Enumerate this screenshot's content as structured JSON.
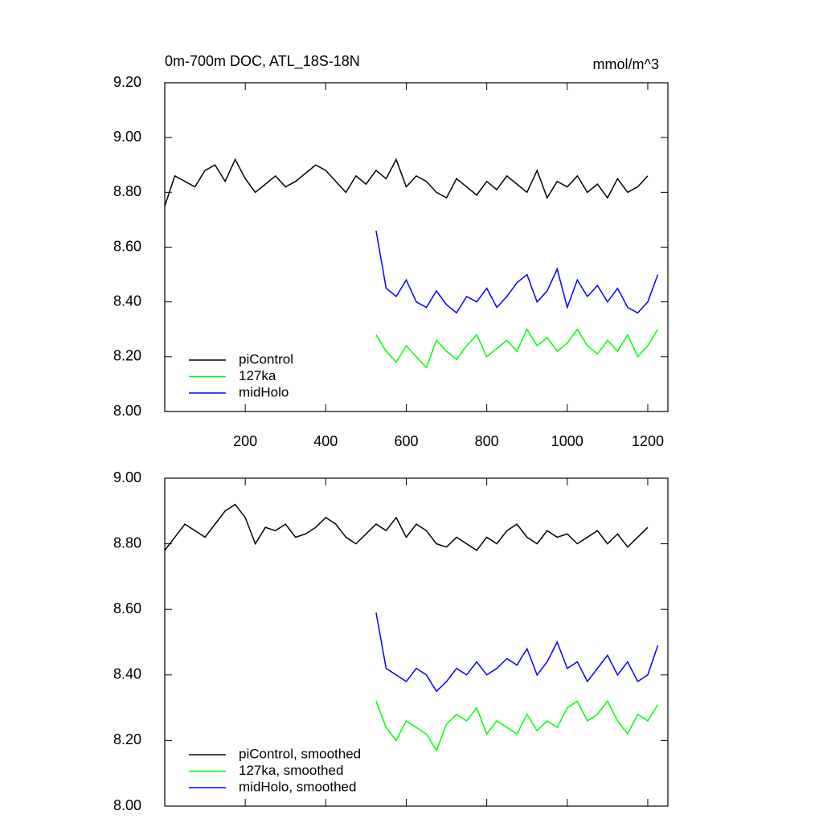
{
  "chart_data": [
    {
      "type": "line",
      "title": "0m-700m DOC, ATL_18S-18N",
      "units": "mmol/m^3",
      "x": [
        0,
        25,
        50,
        75,
        100,
        125,
        150,
        175,
        200,
        225,
        250,
        275,
        300,
        325,
        350,
        375,
        400,
        425,
        450,
        475,
        500,
        525,
        550,
        575,
        600,
        625,
        650,
        675,
        700,
        725,
        750,
        775,
        800,
        825,
        850,
        875,
        900,
        925,
        950,
        975,
        1000,
        1025,
        1050,
        1075,
        1100,
        1125,
        1150,
        1175,
        1200,
        1225
      ],
      "xlim": [
        0,
        1250
      ],
      "xticks": [
        200,
        400,
        600,
        800,
        1000,
        1200
      ],
      "ylim": [
        8,
        9.2
      ],
      "yticks": [
        {
          "value": 8,
          "label": "8.00"
        },
        {
          "value": 8.2,
          "label": "8.20"
        },
        {
          "value": 8.4,
          "label": "8.40"
        },
        {
          "value": 8.6,
          "label": "8.60"
        },
        {
          "value": 8.8,
          "label": "8.80"
        },
        {
          "value": 9,
          "label": "9.00"
        },
        {
          "value": 9.2,
          "label": "9.20"
        }
      ],
      "legend": "lower left",
      "series": [
        {
          "name": "piControl",
          "color": "#000000",
          "values": [
            8.75,
            8.86,
            8.84,
            8.82,
            8.88,
            8.9,
            8.84,
            8.92,
            8.85,
            8.8,
            8.83,
            8.86,
            8.82,
            8.84,
            8.87,
            8.9,
            8.88,
            8.84,
            8.8,
            8.86,
            8.83,
            8.88,
            8.85,
            8.92,
            8.82,
            8.86,
            8.84,
            8.8,
            8.78,
            8.85,
            8.82,
            8.79,
            8.84,
            8.81,
            8.86,
            8.83,
            8.8,
            8.88,
            8.78,
            8.84,
            8.82,
            8.86,
            8.8,
            8.83,
            8.78,
            8.85,
            8.8,
            8.82,
            8.86,
            null
          ]
        },
        {
          "name": "127ka",
          "color": "#00ff00",
          "values": [
            null,
            null,
            null,
            null,
            null,
            null,
            null,
            null,
            null,
            null,
            null,
            null,
            null,
            null,
            null,
            null,
            null,
            null,
            null,
            null,
            null,
            8.28,
            8.22,
            8.18,
            8.24,
            8.2,
            8.16,
            8.26,
            8.22,
            8.19,
            8.24,
            8.28,
            8.2,
            8.23,
            8.26,
            8.22,
            8.3,
            8.24,
            8.27,
            8.22,
            8.25,
            8.3,
            8.24,
            8.21,
            8.26,
            8.22,
            8.28,
            8.2,
            8.24,
            8.3
          ]
        },
        {
          "name": "midHolo",
          "color": "#0000ff",
          "values": [
            null,
            null,
            null,
            null,
            null,
            null,
            null,
            null,
            null,
            null,
            null,
            null,
            null,
            null,
            null,
            null,
            null,
            null,
            null,
            null,
            null,
            8.66,
            8.45,
            8.42,
            8.48,
            8.4,
            8.38,
            8.44,
            8.39,
            8.36,
            8.42,
            8.4,
            8.45,
            8.38,
            8.42,
            8.47,
            8.5,
            8.4,
            8.44,
            8.52,
            8.38,
            8.48,
            8.42,
            8.46,
            8.4,
            8.45,
            8.38,
            8.36,
            8.4,
            8.5
          ]
        }
      ]
    },
    {
      "type": "line",
      "x": [
        0,
        25,
        50,
        75,
        100,
        125,
        150,
        175,
        200,
        225,
        250,
        275,
        300,
        325,
        350,
        375,
        400,
        425,
        450,
        475,
        500,
        525,
        550,
        575,
        600,
        625,
        650,
        675,
        700,
        725,
        750,
        775,
        800,
        825,
        850,
        875,
        900,
        925,
        950,
        975,
        1000,
        1025,
        1050,
        1075,
        1100,
        1125,
        1150,
        1175,
        1200,
        1225
      ],
      "xlim": [
        0,
        1250
      ],
      "ylim": [
        8,
        9
      ],
      "yticks": [
        {
          "value": 8,
          "label": "8.00"
        },
        {
          "value": 8.2,
          "label": "8.20"
        },
        {
          "value": 8.4,
          "label": "8.40"
        },
        {
          "value": 8.6,
          "label": "8.60"
        },
        {
          "value": 8.8,
          "label": "8.80"
        },
        {
          "value": 9,
          "label": "9.00"
        }
      ],
      "legend": "lower left",
      "series": [
        {
          "name": "piControl, smoothed",
          "color": "#000000",
          "values": [
            8.78,
            8.82,
            8.86,
            8.84,
            8.82,
            8.86,
            8.9,
            8.92,
            8.88,
            8.8,
            8.85,
            8.84,
            8.86,
            8.82,
            8.83,
            8.85,
            8.88,
            8.86,
            8.82,
            8.8,
            8.83,
            8.86,
            8.84,
            8.88,
            8.82,
            8.86,
            8.84,
            8.8,
            8.79,
            8.82,
            8.8,
            8.78,
            8.82,
            8.8,
            8.84,
            8.86,
            8.82,
            8.8,
            8.84,
            8.82,
            8.83,
            8.8,
            8.82,
            8.84,
            8.8,
            8.83,
            8.79,
            8.82,
            8.85,
            null
          ]
        },
        {
          "name": "127ka, smoothed",
          "color": "#00ff00",
          "values": [
            null,
            null,
            null,
            null,
            null,
            null,
            null,
            null,
            null,
            null,
            null,
            null,
            null,
            null,
            null,
            null,
            null,
            null,
            null,
            null,
            null,
            8.32,
            8.24,
            8.2,
            8.26,
            8.24,
            8.22,
            8.17,
            8.25,
            8.28,
            8.26,
            8.3,
            8.22,
            8.26,
            8.24,
            8.22,
            8.28,
            8.23,
            8.26,
            8.24,
            8.3,
            8.32,
            8.26,
            8.28,
            8.32,
            8.26,
            8.22,
            8.28,
            8.26,
            8.31
          ]
        },
        {
          "name": "midHolo, smoothed",
          "color": "#0000ff",
          "values": [
            null,
            null,
            null,
            null,
            null,
            null,
            null,
            null,
            null,
            null,
            null,
            null,
            null,
            null,
            null,
            null,
            null,
            null,
            null,
            null,
            null,
            8.59,
            8.42,
            8.4,
            8.38,
            8.42,
            8.4,
            8.35,
            8.38,
            8.42,
            8.4,
            8.44,
            8.4,
            8.42,
            8.45,
            8.43,
            8.48,
            8.4,
            8.44,
            8.5,
            8.42,
            8.44,
            8.38,
            8.42,
            8.46,
            8.4,
            8.44,
            8.38,
            8.4,
            8.49
          ]
        }
      ]
    }
  ]
}
